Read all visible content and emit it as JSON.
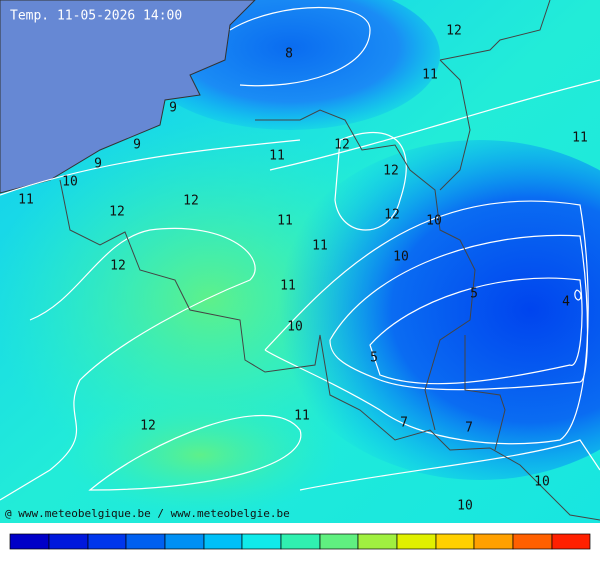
{
  "header": {
    "title": "Temp. 11-05-2026 14:00"
  },
  "labels": [
    8,
    12,
    11,
    11,
    9,
    9,
    9,
    10,
    11,
    11,
    12,
    12,
    12,
    12,
    11,
    12,
    10,
    11,
    10,
    12,
    11,
    5,
    4,
    10,
    5,
    11,
    7,
    7,
    12,
    10,
    10
  ],
  "footer": {
    "credit": "@ www.meteobelgique.be / www.meteobelgie.be"
  }
}
